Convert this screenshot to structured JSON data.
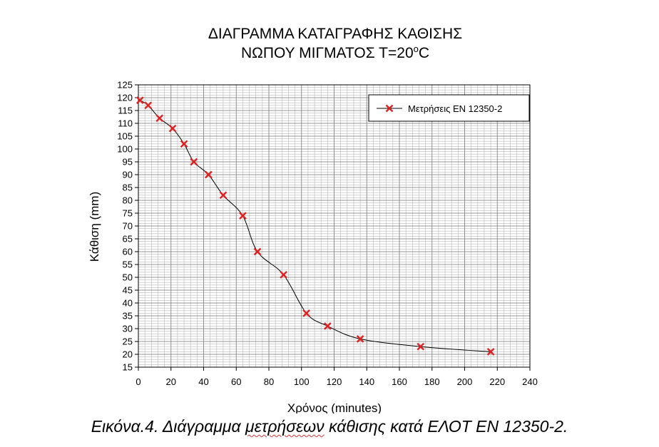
{
  "chart_data": {
    "type": "line",
    "title_line1": "ΔΙΑΓΡΑΜΜΑ ΚΑΤΑΓΡΑΦΗΣ ΚΑΘΙΣΗΣ",
    "title_line2_prefix": "ΝΩΠΟΥ ΜΙΓΜΑΤΟΣ Τ=20",
    "title_line2_sup": "o",
    "title_line2_suffix": "C",
    "xlabel": "Χρόνος (minutes)",
    "ylabel": "Κάθιση (mm)",
    "xlim": [
      0,
      240
    ],
    "ylim": [
      15,
      125
    ],
    "x_ticks": [
      0,
      20,
      40,
      60,
      80,
      100,
      120,
      140,
      160,
      180,
      200,
      220,
      240
    ],
    "y_ticks": [
      15,
      20,
      25,
      30,
      35,
      40,
      45,
      50,
      55,
      60,
      65,
      70,
      75,
      80,
      85,
      90,
      95,
      100,
      105,
      110,
      115,
      120,
      125
    ],
    "grid": true,
    "legend_position": "top-right",
    "series": [
      {
        "name": "Μετρήσεις ΕΝ 12350-2",
        "marker": "x",
        "marker_color": "#e02020",
        "line_color": "#000000",
        "x": [
          1,
          6,
          13,
          21,
          28,
          34,
          43,
          52,
          64,
          73,
          89,
          103,
          116,
          136,
          173,
          216
        ],
        "y": [
          119,
          117,
          112,
          108,
          102,
          95,
          90,
          82,
          74,
          60,
          51,
          36,
          31,
          26,
          23,
          21
        ]
      }
    ]
  },
  "caption": {
    "before": "Εικόνα.4. Διάγραμμα ",
    "underlined": "μετρήσεων",
    "after": " κάθισης κατά ΕΛΟΤ ΕΝ 12350-2."
  }
}
